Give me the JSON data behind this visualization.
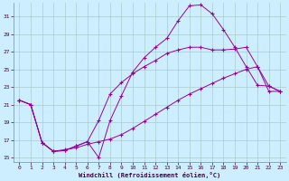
{
  "xlabel": "Windchill (Refroidissement éolien,°C)",
  "bg_color": "#cceeff",
  "line_color": "#990099",
  "grid_color": "#aacccc",
  "xlim": [
    -0.5,
    23.5
  ],
  "ylim": [
    14.5,
    32.5
  ],
  "yticks": [
    15,
    17,
    19,
    21,
    23,
    25,
    27,
    29,
    31
  ],
  "xticks": [
    0,
    1,
    2,
    3,
    4,
    5,
    6,
    7,
    8,
    9,
    10,
    11,
    12,
    13,
    14,
    15,
    16,
    17,
    18,
    19,
    20,
    21,
    22,
    23
  ],
  "series1_x": [
    0,
    1,
    2,
    3,
    4,
    5,
    6,
    7,
    8,
    9,
    10,
    11,
    12,
    13,
    14,
    15,
    16,
    17,
    18,
    19,
    20,
    21,
    22,
    23
  ],
  "series1_y": [
    21.5,
    21.0,
    16.7,
    15.7,
    15.8,
    16.3,
    16.8,
    15.0,
    19.2,
    22.0,
    24.7,
    26.3,
    27.5,
    28.5,
    30.5,
    32.2,
    32.3,
    31.3,
    29.5,
    27.5,
    25.3,
    23.2,
    23.1,
    22.5
  ],
  "series2_x": [
    0,
    1,
    2,
    3,
    4,
    5,
    6,
    7,
    8,
    9,
    10,
    11,
    12,
    13,
    14,
    15,
    16,
    17,
    18,
    19,
    20,
    21,
    22,
    23
  ],
  "series2_y": [
    21.5,
    21.0,
    16.7,
    15.7,
    15.8,
    16.3,
    16.8,
    19.2,
    22.2,
    23.5,
    24.5,
    25.3,
    26.0,
    26.8,
    27.2,
    27.5,
    27.5,
    27.2,
    27.2,
    27.3,
    27.5,
    25.3,
    23.1,
    22.5
  ],
  "series3_x": [
    0,
    1,
    2,
    3,
    4,
    5,
    6,
    7,
    8,
    9,
    10,
    11,
    12,
    13,
    14,
    15,
    16,
    17,
    18,
    19,
    20,
    21,
    22,
    23
  ],
  "series3_y": [
    21.5,
    21.0,
    16.7,
    15.7,
    15.9,
    16.1,
    16.5,
    16.8,
    17.1,
    17.6,
    18.3,
    19.1,
    19.9,
    20.7,
    21.5,
    22.2,
    22.8,
    23.4,
    24.0,
    24.5,
    25.0,
    25.3,
    22.5,
    22.5
  ]
}
